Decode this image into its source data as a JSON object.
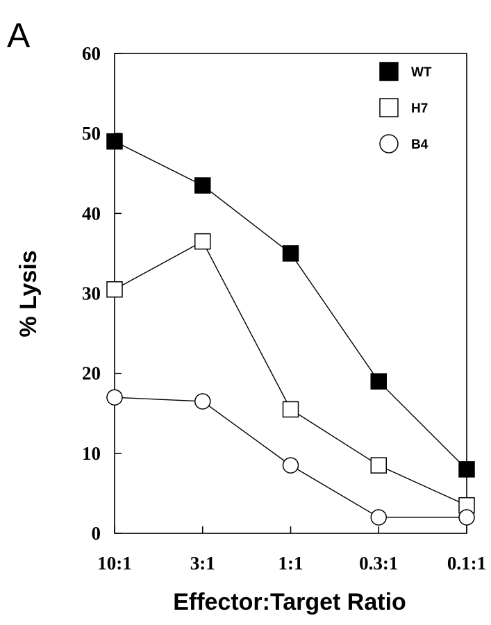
{
  "panel_label": "A",
  "chart_data": {
    "type": "line",
    "xlabel": "Effector:Target Ratio",
    "ylabel": "% Lysis",
    "categories": [
      "10:1",
      "3:1",
      "1:1",
      "0.3:1",
      "0.1:1"
    ],
    "ylim": [
      0,
      60
    ],
    "yticks": [
      0,
      10,
      20,
      30,
      40,
      50,
      60
    ],
    "grid": false,
    "legend_position": "top-right",
    "series": [
      {
        "name": "WT",
        "marker": "filled-square",
        "values": [
          49,
          43.5,
          35,
          19,
          8
        ]
      },
      {
        "name": "H7",
        "marker": "open-square",
        "values": [
          30.5,
          36.5,
          15.5,
          8.5,
          3.5
        ]
      },
      {
        "name": "B4",
        "marker": "open-circle",
        "values": [
          17,
          16.5,
          8.5,
          2,
          2
        ]
      }
    ]
  }
}
